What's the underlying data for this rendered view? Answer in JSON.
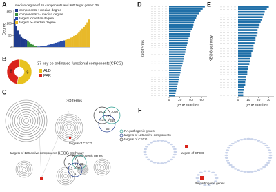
{
  "panels": {
    "a": {
      "label": "A",
      "title": "median degree of 85 components and 900 target genes:  29",
      "y_label": "Degree",
      "ylim": [
        0,
        160
      ],
      "yticks": [
        0,
        50,
        100,
        150
      ],
      "series": [
        {
          "name": "components < median degree",
          "color": "#1f3b8c",
          "values": [
            120,
            90,
            70,
            55,
            45,
            38,
            33,
            30
          ]
        },
        {
          "name": "components >= median degree",
          "color": "#3a8f3a",
          "values": [
            25,
            20,
            15,
            10,
            6,
            3
          ]
        },
        {
          "name": "targets < median degree",
          "color": "#2b4fa8",
          "values": [
            2,
            2,
            3,
            4,
            5,
            6,
            8,
            10,
            12,
            14,
            16,
            18,
            20,
            22,
            24,
            26,
            28
          ]
        },
        {
          "name": "targets >= median degree",
          "color": "#e8b92a",
          "values": [
            30,
            33,
            36,
            40,
            44,
            48,
            53,
            58,
            64,
            70,
            78,
            86,
            95,
            105,
            118
          ]
        }
      ]
    },
    "b": {
      "label": "B",
      "text": "37 key co-ordinated functional components(CFCG)",
      "slices": [
        {
          "name": "ALD",
          "color": "#e8c21f",
          "value": 9
        },
        {
          "name": "PAR",
          "color": "#d9241c",
          "value": 8
        }
      ]
    },
    "c": {
      "label": "C",
      "go_title": "GO terms",
      "kegg_title": "KEGG pathway",
      "legend": [
        "RA pathogenic genes",
        "targets of 126 active components",
        "targets of CFCG"
      ],
      "go_venn": [
        1021,
        1060,
        434,
        247,
        355,
        55
      ],
      "kegg_venn": [
        2,
        7,
        3,
        30,
        2,
        46,
        4
      ],
      "net_labels": [
        "targets of CFCG",
        "targets of 126 active components",
        "RA pathogenic genes"
      ]
    },
    "d": {
      "label": "D",
      "y_label": "GO terms",
      "x_label": "gene number",
      "xlim": [
        0,
        70
      ],
      "xticks": [
        0,
        20,
        40,
        60
      ],
      "color": "#1f6fa8",
      "values": [
        66,
        62,
        58,
        55,
        52,
        50,
        48,
        46,
        45,
        43,
        42,
        40,
        39,
        38,
        36,
        35,
        34,
        33,
        32,
        31,
        30,
        29,
        28,
        27,
        26,
        25,
        24,
        23,
        22,
        21,
        20,
        19,
        18,
        17,
        16,
        15,
        14,
        13,
        12,
        11
      ]
    },
    "e": {
      "label": "E",
      "y_label": "KEGG pathway",
      "x_label": "gene number",
      "xlim": [
        0,
        35
      ],
      "xticks": [
        0,
        10,
        20,
        30
      ],
      "color": "#1f6fa8",
      "values": [
        30,
        28,
        26,
        25,
        24,
        23,
        22,
        21,
        20,
        19,
        19,
        18,
        17,
        17,
        16,
        15,
        15,
        14,
        13,
        13,
        12,
        12,
        11,
        10,
        10,
        9,
        9,
        8,
        8,
        7,
        7,
        6,
        6,
        5,
        5
      ]
    },
    "f": {
      "label": "F",
      "net_labels": [
        "targets of CFCG",
        "RA pathogenic genes"
      ]
    }
  }
}
